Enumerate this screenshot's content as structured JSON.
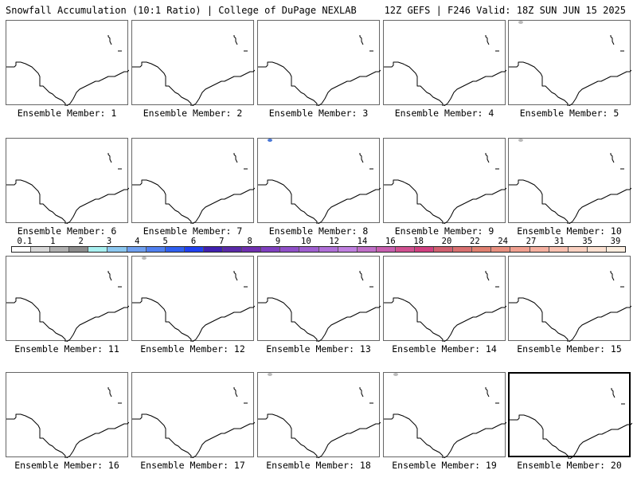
{
  "header": {
    "title_left": "Snowfall Accumulation (10:1 Ratio) | College of DuPage NEXLAB",
    "title_right": "12Z GEFS | F246 Valid: 18Z SUN JUN 15 2025"
  },
  "members": [
    {
      "label": "Ensemble Member: 1",
      "blob": null
    },
    {
      "label": "Ensemble Member: 2",
      "blob": null
    },
    {
      "label": "Ensemble Member: 3",
      "blob": null
    },
    {
      "label": "Ensemble Member: 4",
      "blob": null
    },
    {
      "label": "Ensemble Member: 5",
      "blob": "gray"
    },
    {
      "label": "Ensemble Member: 6",
      "blob": null
    },
    {
      "label": "Ensemble Member: 7",
      "blob": null
    },
    {
      "label": "Ensemble Member: 8",
      "blob": "blue"
    },
    {
      "label": "Ensemble Member: 9",
      "blob": null
    },
    {
      "label": "Ensemble Member: 10",
      "blob": "gray"
    },
    {
      "label": "Ensemble Member: 11",
      "blob": null
    },
    {
      "label": "Ensemble Member: 12",
      "blob": "gray"
    },
    {
      "label": "Ensemble Member: 13",
      "blob": null
    },
    {
      "label": "Ensemble Member: 14",
      "blob": null
    },
    {
      "label": "Ensemble Member: 15",
      "blob": null
    },
    {
      "label": "Ensemble Member: 16",
      "blob": null
    },
    {
      "label": "Ensemble Member: 17",
      "blob": null
    },
    {
      "label": "Ensemble Member: 18",
      "blob": "gray"
    },
    {
      "label": "Ensemble Member: 19",
      "blob": "gray"
    },
    {
      "label": "Ensemble Member: 20",
      "blob": null
    }
  ],
  "selected_member": 20,
  "colorbar": {
    "labels": [
      "0.1",
      "1",
      "2",
      "3",
      "4",
      "5",
      "6",
      "7",
      "8",
      "9",
      "10",
      "12",
      "14",
      "16",
      "18",
      "20",
      "22",
      "24",
      "27",
      "31",
      "35",
      "39"
    ],
    "colors": [
      "#ffffff",
      "#d8d8d8",
      "#b0b0b0",
      "#8c8c8c",
      "#a8f0f0",
      "#8cc8f0",
      "#6fa0f0",
      "#5080f0",
      "#3060f0",
      "#2040f0",
      "#4020b0",
      "#5a2aa8",
      "#7030b0",
      "#8040c0",
      "#9050c8",
      "#a060d0",
      "#b070d8",
      "#c080e0",
      "#c070c8",
      "#c860b0",
      "#d05090",
      "#d04080",
      "#d06070",
      "#d87070",
      "#e08070",
      "#e89080",
      "#f0a090",
      "#f5b0a0",
      "#f8c0b0",
      "#fad0c0",
      "#fce0d0",
      "#fdeee0"
    ]
  }
}
